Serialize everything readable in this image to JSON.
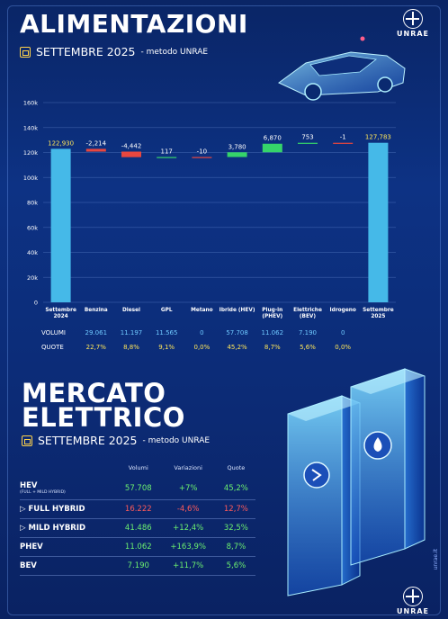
{
  "header": {
    "title": "ALIMENTAZIONI",
    "period": "SETTEMBRE 2025",
    "method": "- metodo UNRAE",
    "logo_text": "UNRAE"
  },
  "chart_data": {
    "type": "bar",
    "subtype": "waterfall",
    "ylim": [
      0,
      160000
    ],
    "yticks": [
      "0",
      "20k",
      "40k",
      "60k",
      "80k",
      "100k",
      "120k",
      "140k",
      "160k"
    ],
    "grid": true,
    "categories": [
      "Settembre 2024",
      "Benzina",
      "Diesel",
      "GPL",
      "Metano",
      "Ibride (HEV)",
      "Plug-in (PHEV)",
      "Elettriche (BEV)",
      "Idrogeno",
      "Settembre 2025"
    ],
    "category_lines": [
      [
        "Settembre",
        "2024"
      ],
      [
        "Benzina"
      ],
      [
        "Diesel"
      ],
      [
        "GPL"
      ],
      [
        "Metano"
      ],
      [
        "Ibride (HEV)"
      ],
      [
        "Plug-in",
        "(PHEV)"
      ],
      [
        "Elettriche",
        "(BEV)"
      ],
      [
        "Idrogeno"
      ],
      [
        "Settembre",
        "2025"
      ]
    ],
    "values": [
      122930,
      -2214,
      -4442,
      117,
      -10,
      3780,
      6870,
      753,
      -1,
      127783
    ],
    "value_labels": [
      "122,930",
      "-2,214",
      "-4,442",
      "117",
      "-10",
      "3,780",
      "6,870",
      "753",
      "-1",
      "127,783"
    ],
    "colors": {
      "total": "#45b9e8",
      "increase": "#35d46a",
      "decrease": "#e8473f",
      "label": "#ffe75a"
    }
  },
  "table_below_chart": {
    "volumi_label": "VOLUMI",
    "quote_label": "QUOTE",
    "volumi": [
      "29.061",
      "11.197",
      "11.565",
      "0",
      "57.708",
      "11.062",
      "7.190",
      "0"
    ],
    "quote": [
      "22,7%",
      "8,8%",
      "9,1%",
      "0,0%",
      "45,2%",
      "8,7%",
      "5,6%",
      "0,0%"
    ]
  },
  "mercato": {
    "title_line1": "MERCATO",
    "title_line2": "ELETTRICO",
    "period": "SETTEMBRE 2025",
    "method": "- metodo UNRAE",
    "columns": [
      "Volumi",
      "Variazioni",
      "Quote"
    ],
    "rows": [
      {
        "label": "HEV",
        "sub": "(FULL + MILD HYBRID)",
        "volumi": "57.708",
        "variazioni": "+7%",
        "quote": "45,2%",
        "trend": "pos"
      },
      {
        "label": "▷ FULL HYBRID",
        "sub": "",
        "volumi": "16.222",
        "variazioni": "-4,6%",
        "quote": "12,7%",
        "trend": "neg"
      },
      {
        "label": "▷ MILD HYBRID",
        "sub": "",
        "volumi": "41.486",
        "variazioni": "+12,4%",
        "quote": "32,5%",
        "trend": "pos"
      },
      {
        "label": "PHEV",
        "sub": "",
        "volumi": "11.062",
        "variazioni": "+163,9%",
        "quote": "8,7%",
        "trend": "pos"
      },
      {
        "label": "BEV",
        "sub": "",
        "volumi": "7.190",
        "variazioni": "+11,7%",
        "quote": "5,6%",
        "trend": "pos"
      }
    ]
  },
  "footer": {
    "logo_text": "UNRAE",
    "side_text": "unrae.it"
  }
}
